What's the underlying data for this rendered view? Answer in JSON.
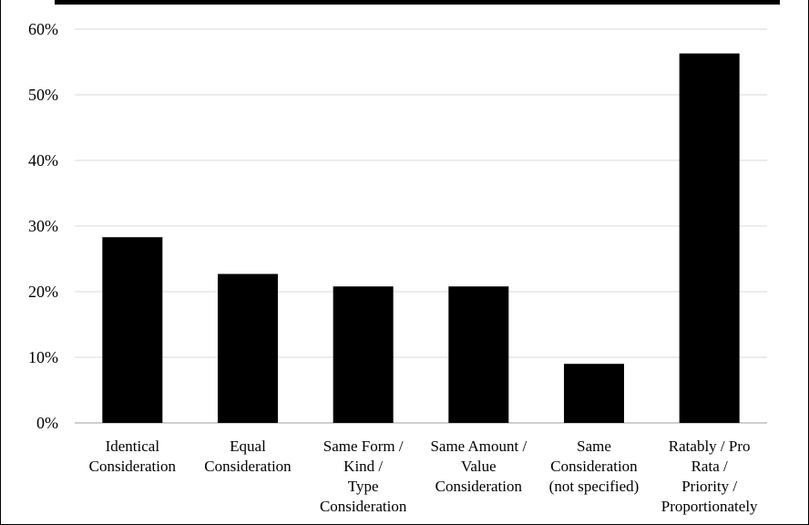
{
  "chart_data": {
    "type": "bar",
    "title": "",
    "xlabel": "",
    "ylabel": "",
    "ylim": [
      0,
      60
    ],
    "y_ticks": [
      0,
      10,
      20,
      30,
      40,
      50,
      60
    ],
    "y_tick_labels": [
      "0%",
      "10%",
      "20%",
      "30%",
      "40%",
      "50%",
      "60%"
    ],
    "grid": true,
    "legend": "none",
    "categories": [
      [
        "Identical",
        "Consideration"
      ],
      [
        "Equal",
        "Consideration"
      ],
      [
        "Same Form /",
        "Kind /",
        "Type",
        "Consideration"
      ],
      [
        "Same Amount /",
        "Value",
        "Consideration"
      ],
      [
        "Same",
        "Consideration",
        "(not specified)"
      ],
      [
        "Ratably / Pro",
        "Rata /",
        "Priority /",
        "Proportionately"
      ]
    ],
    "values": [
      28.3,
      22.7,
      20.8,
      20.8,
      9.0,
      56.3
    ],
    "bar_color": "#000000",
    "grid_color": "#d9d9d9",
    "axis_color": "#bfbfbf"
  }
}
